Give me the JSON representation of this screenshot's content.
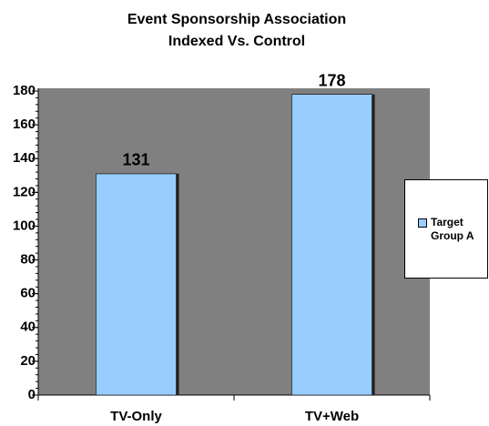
{
  "chart_data": {
    "type": "bar",
    "title": [
      "Event Sponsorship Association",
      "Indexed Vs. Control"
    ],
    "categories": [
      "TV-Only",
      "TV+Web"
    ],
    "series": [
      {
        "name": "Target Group A",
        "color": "#99ccff",
        "values": [
          131,
          178
        ]
      }
    ],
    "ylim": [
      0,
      180
    ],
    "yticks": [
      0,
      20,
      40,
      60,
      80,
      100,
      120,
      140,
      160,
      180
    ],
    "grid": false,
    "legend": "right",
    "plot_background": "#808080"
  }
}
